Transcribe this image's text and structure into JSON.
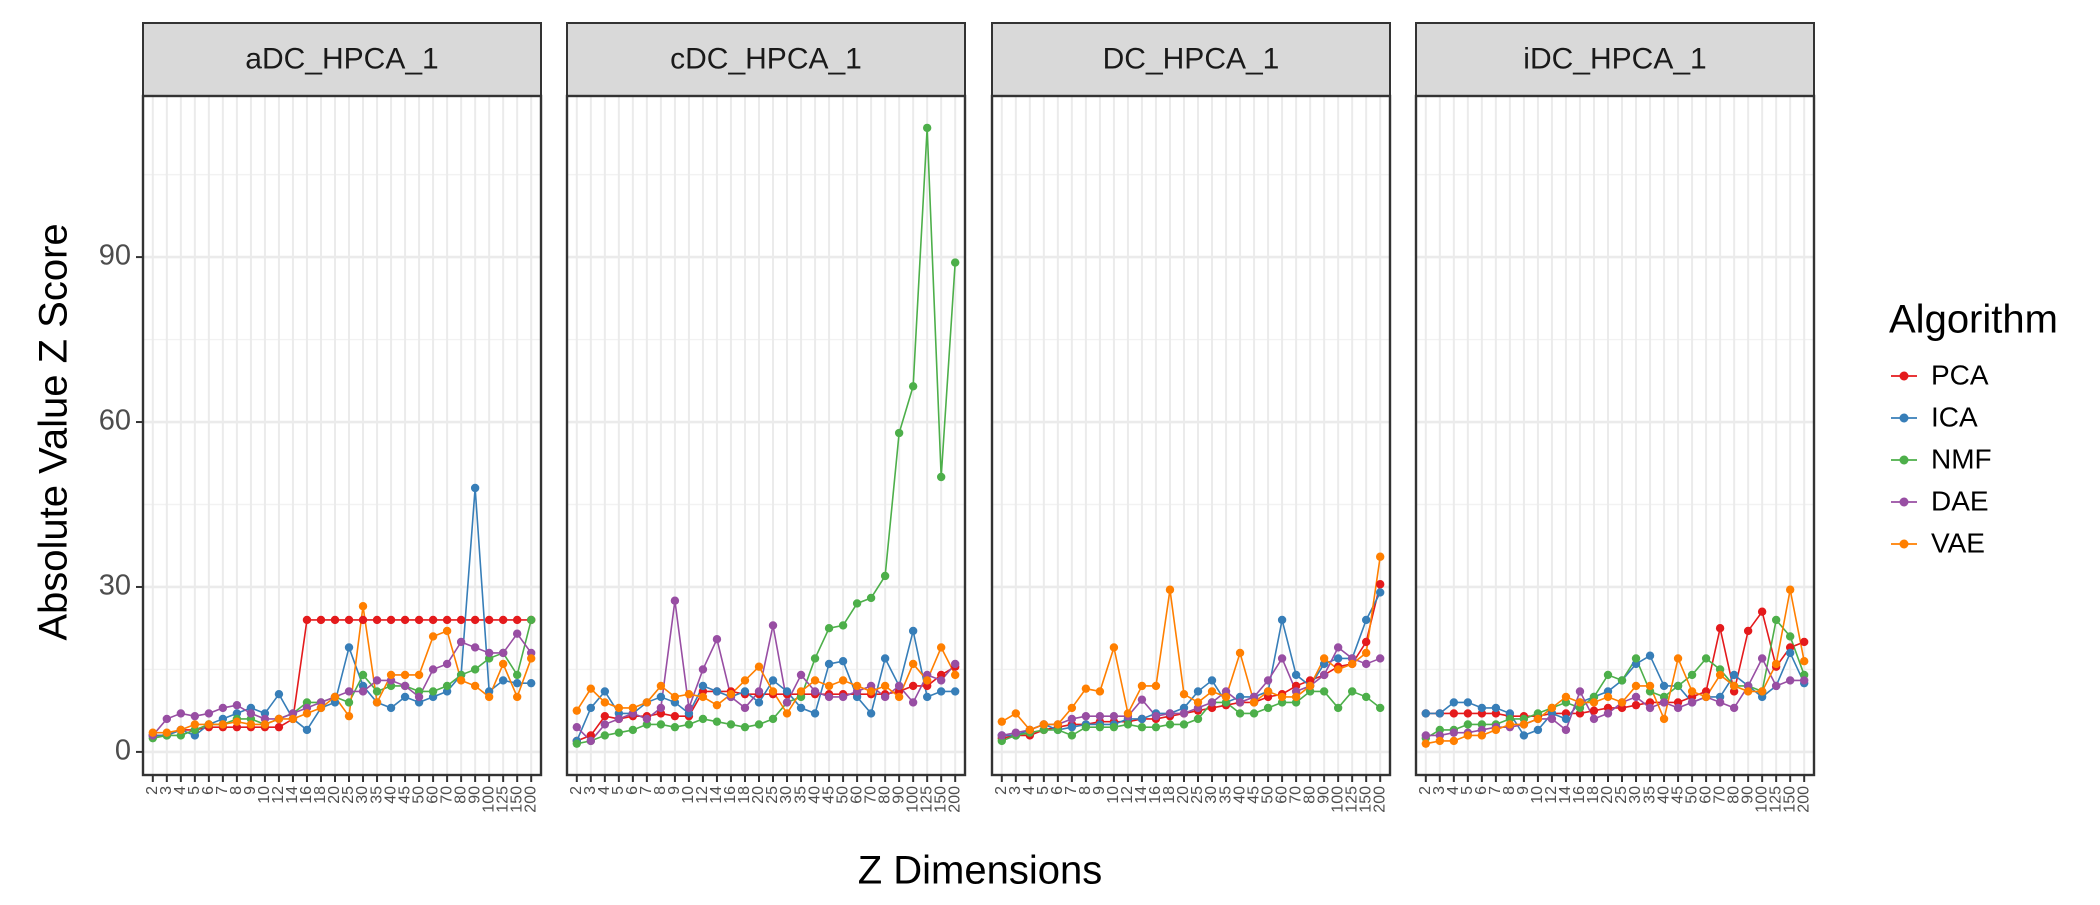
{
  "x_label": "Z Dimensions",
  "y_label": "Absolute Value Z Score",
  "legend": {
    "title": "Algorithm",
    "position": "right"
  },
  "chart_data": [
    {
      "type": "line",
      "title": "aDC_HPCA_1",
      "categories": [
        "2",
        "3",
        "4",
        "5",
        "6",
        "7",
        "8",
        "9",
        "10",
        "12",
        "14",
        "16",
        "18",
        "20",
        "25",
        "30",
        "35",
        "40",
        "45",
        "50",
        "60",
        "70",
        "80",
        "90",
        "100",
        "125",
        "150",
        "200"
      ],
      "ylim": [
        -4.2,
        119.3
      ],
      "yticks": [
        0,
        30,
        60,
        90
      ],
      "minor_yticks": [
        15,
        45,
        75,
        105
      ],
      "grid": true,
      "series": [
        {
          "name": "PCA",
          "color": "#e41a1c",
          "values": [
            3,
            3,
            4,
            4,
            4.5,
            4.5,
            4.5,
            4.5,
            4.5,
            4.5,
            6,
            24,
            24,
            24,
            24,
            24,
            24,
            24,
            24,
            24,
            24,
            24,
            24,
            24,
            24,
            24,
            24,
            24
          ]
        },
        {
          "name": "ICA",
          "color": "#377eb8",
          "values": [
            3,
            3,
            4,
            3,
            5,
            6,
            7,
            8,
            7,
            10.5,
            6,
            4,
            8,
            9,
            19,
            12,
            9,
            8,
            10,
            9,
            10,
            11,
            14,
            48,
            11,
            13,
            12.5,
            12.5
          ]
        },
        {
          "name": "NMF",
          "color": "#4daf4a",
          "values": [
            2.5,
            3,
            3,
            4,
            5,
            5,
            6,
            6,
            5,
            6,
            7,
            9,
            9,
            10,
            9,
            14,
            11,
            12,
            12,
            11,
            11,
            12,
            14,
            15,
            17,
            18,
            14,
            24
          ]
        },
        {
          "name": "DAE",
          "color": "#984ea3",
          "values": [
            3,
            6,
            7,
            6.5,
            7,
            8,
            8.5,
            7,
            6,
            6,
            7,
            8,
            9,
            10,
            11,
            11,
            13,
            13,
            12,
            10,
            15,
            16,
            20,
            19,
            18,
            18,
            21.5,
            18
          ]
        },
        {
          "name": "VAE",
          "color": "#ff7f00",
          "values": [
            3.5,
            3.5,
            4,
            5,
            5,
            5,
            5.5,
            5,
            5,
            6,
            6,
            7,
            8,
            10,
            6.5,
            26.5,
            9,
            14,
            14,
            14,
            21,
            22,
            13,
            12,
            10,
            16,
            10,
            17
          ]
        }
      ]
    },
    {
      "type": "line",
      "title": "cDC_HPCA_1",
      "categories": [
        "2",
        "3",
        "4",
        "5",
        "6",
        "7",
        "8",
        "9",
        "10",
        "12",
        "14",
        "16",
        "18",
        "20",
        "25",
        "30",
        "35",
        "40",
        "45",
        "50",
        "60",
        "70",
        "80",
        "90",
        "100",
        "125",
        "150",
        "200"
      ],
      "ylim": [
        -4.2,
        119.3
      ],
      "yticks": [
        0,
        30,
        60,
        90
      ],
      "minor_yticks": [
        15,
        45,
        75,
        105
      ],
      "grid": true,
      "series": [
        {
          "name": "PCA",
          "color": "#e41a1c",
          "values": [
            2,
            3,
            6.5,
            6,
            6.5,
            6.5,
            7,
            6.5,
            6.5,
            11,
            11,
            11,
            10.5,
            10.5,
            10.5,
            10.5,
            10.5,
            10.5,
            10.5,
            10.5,
            10.5,
            10.5,
            10.5,
            11,
            12,
            12,
            14,
            15.5
          ]
        },
        {
          "name": "ICA",
          "color": "#377eb8",
          "values": [
            2,
            8,
            11,
            7,
            7,
            9,
            10,
            9,
            7,
            12,
            11,
            10,
            11,
            9,
            13,
            11,
            8,
            7,
            16,
            16.5,
            10,
            7,
            17,
            12,
            22,
            10,
            11,
            11
          ]
        },
        {
          "name": "NMF",
          "color": "#4daf4a",
          "values": [
            1.5,
            2,
            3,
            3.5,
            4,
            5,
            5,
            4.5,
            5,
            6,
            5.5,
            5,
            4.5,
            5,
            6,
            9,
            10,
            17,
            22.5,
            23,
            27,
            28,
            32,
            58,
            66.5,
            113.5,
            50,
            89
          ]
        },
        {
          "name": "DAE",
          "color": "#984ea3",
          "values": [
            4.5,
            2,
            5,
            6,
            7,
            6,
            8,
            27.5,
            8,
            15,
            20.5,
            10,
            8,
            11,
            23,
            9,
            14,
            11,
            10,
            10,
            11,
            12,
            10,
            12,
            9,
            14,
            13,
            16
          ]
        },
        {
          "name": "VAE",
          "color": "#ff7f00",
          "values": [
            7.5,
            11.5,
            9,
            8,
            8,
            9,
            12,
            10,
            10.5,
            10,
            8.5,
            10.5,
            13,
            15.5,
            11,
            7,
            11,
            13,
            12,
            13,
            12,
            11,
            12,
            10,
            16,
            13,
            19,
            14
          ]
        }
      ]
    },
    {
      "type": "line",
      "title": "DC_HPCA_1",
      "categories": [
        "2",
        "3",
        "4",
        "5",
        "6",
        "7",
        "8",
        "9",
        "10",
        "12",
        "14",
        "16",
        "18",
        "20",
        "25",
        "30",
        "35",
        "40",
        "45",
        "50",
        "60",
        "70",
        "80",
        "90",
        "100",
        "125",
        "150",
        "200"
      ],
      "ylim": [
        -4.2,
        119.3
      ],
      "yticks": [
        0,
        30,
        60,
        90
      ],
      "minor_yticks": [
        15,
        45,
        75,
        105
      ],
      "grid": true,
      "series": [
        {
          "name": "PCA",
          "color": "#e41a1c",
          "values": [
            2.5,
            3,
            3,
            4,
            4.5,
            5,
            5,
            5.5,
            5.5,
            5.5,
            6,
            6,
            6.5,
            7,
            7.5,
            8,
            8.5,
            9,
            9,
            10,
            10.5,
            12,
            13,
            14,
            15.5,
            16,
            20,
            30.5
          ]
        },
        {
          "name": "ICA",
          "color": "#377eb8",
          "values": [
            3,
            3,
            4,
            5,
            4,
            4.5,
            5,
            5,
            5,
            6,
            6,
            7,
            7,
            8,
            11,
            13,
            9,
            10,
            10,
            11,
            24,
            14,
            12,
            16,
            17,
            17,
            24,
            29
          ]
        },
        {
          "name": "NMF",
          "color": "#4daf4a",
          "values": [
            2,
            3,
            3.5,
            4,
            4,
            3,
            4.5,
            4.5,
            4.5,
            5,
            4.5,
            4.5,
            5,
            5,
            6,
            9,
            9,
            7,
            7,
            8,
            9,
            9,
            11,
            11,
            8,
            11,
            10,
            8
          ]
        },
        {
          "name": "DAE",
          "color": "#984ea3",
          "values": [
            3,
            3.5,
            4,
            5,
            5,
            6,
            6.5,
            6.5,
            6.5,
            6.5,
            9.5,
            6.5,
            7,
            7,
            8,
            9,
            11,
            9,
            10,
            13,
            17,
            11,
            12,
            14,
            19,
            17,
            16,
            17
          ]
        },
        {
          "name": "VAE",
          "color": "#ff7f00",
          "values": [
            5.5,
            7,
            4,
            5,
            5,
            8,
            11.5,
            11,
            19,
            7,
            12,
            12,
            29.5,
            10.5,
            9,
            11,
            10,
            18,
            9,
            11,
            10,
            10,
            12,
            17,
            15,
            16,
            18,
            35.5
          ]
        }
      ]
    },
    {
      "type": "line",
      "title": "iDC_HPCA_1",
      "categories": [
        "2",
        "3",
        "4",
        "5",
        "6",
        "7",
        "8",
        "9",
        "10",
        "12",
        "14",
        "16",
        "18",
        "20",
        "25",
        "30",
        "35",
        "40",
        "45",
        "50",
        "60",
        "70",
        "80",
        "90",
        "100",
        "125",
        "150",
        "200"
      ],
      "ylim": [
        -4.2,
        119.3
      ],
      "yticks": [
        0,
        30,
        60,
        90
      ],
      "minor_yticks": [
        15,
        45,
        75,
        105
      ],
      "grid": true,
      "series": [
        {
          "name": "PCA",
          "color": "#e41a1c",
          "values": [
            7,
            7,
            7,
            7,
            7,
            7,
            6.5,
            6.5,
            6.5,
            7,
            7,
            7,
            7.5,
            8,
            8,
            8.5,
            9,
            9,
            9,
            10,
            11,
            22.5,
            11,
            22,
            25.5,
            15.5,
            19,
            20
          ]
        },
        {
          "name": "ICA",
          "color": "#377eb8",
          "values": [
            7,
            7,
            9,
            9,
            8,
            8,
            7,
            3,
            4,
            7,
            6,
            9,
            10,
            11,
            13,
            16,
            17.5,
            12,
            12,
            9,
            10,
            10,
            14,
            12,
            10,
            12,
            18,
            12.5
          ]
        },
        {
          "name": "NMF",
          "color": "#4daf4a",
          "values": [
            2.5,
            4,
            4,
            5,
            5,
            5,
            6,
            6,
            7,
            8,
            9,
            8,
            10,
            14,
            13,
            17,
            11,
            10,
            12,
            14,
            17,
            15,
            12,
            12,
            11,
            24,
            21,
            14
          ]
        },
        {
          "name": "DAE",
          "color": "#984ea3",
          "values": [
            3,
            3,
            3.5,
            3.5,
            4,
            4.5,
            4.5,
            5,
            6,
            6,
            4,
            11,
            6,
            7,
            9,
            10,
            8,
            9,
            8,
            9,
            10,
            9,
            8,
            12,
            17,
            12,
            13,
            13
          ]
        },
        {
          "name": "VAE",
          "color": "#ff7f00",
          "values": [
            1.5,
            2,
            2,
            3,
            3,
            4,
            5,
            5,
            6,
            8,
            10,
            9,
            9,
            10,
            9,
            12,
            12,
            6,
            17,
            11,
            10,
            14,
            12,
            11,
            11,
            16,
            29.5,
            16.5
          ]
        }
      ]
    }
  ]
}
